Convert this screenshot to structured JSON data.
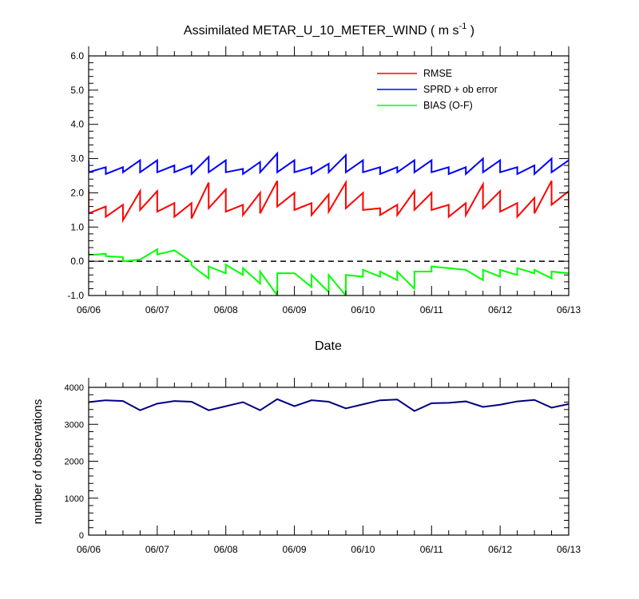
{
  "chart_data": [
    {
      "type": "line",
      "title": "Assimilated METAR_U_10_METER_WIND ( m s",
      "title_superscript": "-1",
      "title_suffix": " )",
      "xlabel": "Date",
      "ylabel": "",
      "ylim": [
        -1.0,
        6.0
      ],
      "xlim": [
        "06/06 00Z",
        "06/13 00Z"
      ],
      "x_ticks": [
        "06/06",
        "06/07",
        "06/08",
        "06/09",
        "06/10",
        "06/11",
        "06/12",
        "06/13"
      ],
      "y_ticks": [
        "-1.0",
        "0.0",
        "1.0",
        "2.0",
        "3.0",
        "4.0",
        "5.0",
        "6.0"
      ],
      "reference_line": {
        "y": 0.0,
        "style": "dashed",
        "color": "#000000"
      },
      "legend": {
        "placement": "top-right"
      },
      "series": [
        {
          "name": "RMSE",
          "color": "#ff0000",
          "points": [
            [
              "06/06 00Z",
              2.1
            ],
            [
              "06/06 00Z",
              1.4
            ],
            [
              "06/06 06Z",
              1.6
            ],
            [
              "06/06 06Z",
              1.3
            ],
            [
              "06/06 12Z",
              1.65
            ],
            [
              "06/06 12Z",
              1.2
            ],
            [
              "06/06 18Z",
              2.05
            ],
            [
              "06/06 18Z",
              1.5
            ],
            [
              "06/07 00Z",
              2.05
            ],
            [
              "06/07 00Z",
              1.45
            ],
            [
              "06/07 06Z",
              1.7
            ],
            [
              "06/07 06Z",
              1.3
            ],
            [
              "06/07 12Z",
              1.7
            ],
            [
              "06/07 12Z",
              1.25
            ],
            [
              "06/07 18Z",
              2.3
            ],
            [
              "06/07 18Z",
              1.55
            ],
            [
              "06/08 00Z",
              2.1
            ],
            [
              "06/08 00Z",
              1.45
            ],
            [
              "06/08 06Z",
              1.65
            ],
            [
              "06/08 06Z",
              1.35
            ],
            [
              "06/08 12Z",
              2.0
            ],
            [
              "06/08 12Z",
              1.4
            ],
            [
              "06/08 18Z",
              2.35
            ],
            [
              "06/08 18Z",
              1.6
            ],
            [
              "06/09 00Z",
              2.0
            ],
            [
              "06/09 00Z",
              1.5
            ],
            [
              "06/09 06Z",
              1.7
            ],
            [
              "06/09 06Z",
              1.35
            ],
            [
              "06/09 12Z",
              1.95
            ],
            [
              "06/09 12Z",
              1.45
            ],
            [
              "06/09 18Z",
              2.3
            ],
            [
              "06/09 18Z",
              1.55
            ],
            [
              "06/10 00Z",
              2.0
            ],
            [
              "06/10 00Z",
              1.5
            ],
            [
              "06/10 06Z",
              1.55
            ],
            [
              "06/10 06Z",
              1.35
            ],
            [
              "06/10 12Z",
              1.65
            ],
            [
              "06/10 12Z",
              1.35
            ],
            [
              "06/10 18Z",
              2.05
            ],
            [
              "06/10 18Z",
              1.5
            ],
            [
              "06/11 00Z",
              2.0
            ],
            [
              "06/11 00Z",
              1.5
            ],
            [
              "06/11 06Z",
              1.65
            ],
            [
              "06/11 06Z",
              1.3
            ],
            [
              "06/11 12Z",
              1.7
            ],
            [
              "06/11 12Z",
              1.35
            ],
            [
              "06/11 18Z",
              2.25
            ],
            [
              "06/11 18Z",
              1.55
            ],
            [
              "06/12 00Z",
              2.05
            ],
            [
              "06/12 00Z",
              1.45
            ],
            [
              "06/12 06Z",
              1.7
            ],
            [
              "06/12 06Z",
              1.3
            ],
            [
              "06/12 12Z",
              1.85
            ],
            [
              "06/12 12Z",
              1.4
            ],
            [
              "06/12 18Z",
              2.35
            ],
            [
              "06/12 18Z",
              1.65
            ],
            [
              "06/13 00Z",
              2.05
            ],
            [
              "06/13 00Z",
              1.55
            ]
          ]
        },
        {
          "name": "SPRD + ob error",
          "color": "#0000ff",
          "points": [
            [
              "06/06 00Z",
              2.95
            ],
            [
              "06/06 00Z",
              2.6
            ],
            [
              "06/06 06Z",
              2.75
            ],
            [
              "06/06 06Z",
              2.55
            ],
            [
              "06/06 12Z",
              2.75
            ],
            [
              "06/06 12Z",
              2.6
            ],
            [
              "06/06 18Z",
              2.95
            ],
            [
              "06/06 18Z",
              2.6
            ],
            [
              "06/07 00Z",
              2.95
            ],
            [
              "06/07 00Z",
              2.6
            ],
            [
              "06/07 06Z",
              2.8
            ],
            [
              "06/07 06Z",
              2.6
            ],
            [
              "06/07 12Z",
              2.8
            ],
            [
              "06/07 12Z",
              2.55
            ],
            [
              "06/07 18Z",
              3.05
            ],
            [
              "06/07 18Z",
              2.6
            ],
            [
              "06/08 00Z",
              2.95
            ],
            [
              "06/08 00Z",
              2.6
            ],
            [
              "06/08 06Z",
              2.7
            ],
            [
              "06/08 06Z",
              2.55
            ],
            [
              "06/08 12Z",
              2.9
            ],
            [
              "06/08 12Z",
              2.6
            ],
            [
              "06/08 18Z",
              3.15
            ],
            [
              "06/08 18Z",
              2.6
            ],
            [
              "06/09 00Z",
              2.95
            ],
            [
              "06/09 00Z",
              2.6
            ],
            [
              "06/09 06Z",
              2.75
            ],
            [
              "06/09 06Z",
              2.55
            ],
            [
              "06/09 12Z",
              2.85
            ],
            [
              "06/09 12Z",
              2.6
            ],
            [
              "06/09 18Z",
              3.1
            ],
            [
              "06/09 18Z",
              2.6
            ],
            [
              "06/10 00Z",
              2.95
            ],
            [
              "06/10 00Z",
              2.6
            ],
            [
              "06/10 06Z",
              2.75
            ],
            [
              "06/10 06Z",
              2.55
            ],
            [
              "06/10 12Z",
              2.75
            ],
            [
              "06/10 12Z",
              2.6
            ],
            [
              "06/10 18Z",
              2.95
            ],
            [
              "06/10 18Z",
              2.6
            ],
            [
              "06/11 00Z",
              2.95
            ],
            [
              "06/11 00Z",
              2.6
            ],
            [
              "06/11 06Z",
              2.75
            ],
            [
              "06/11 06Z",
              2.55
            ],
            [
              "06/11 12Z",
              2.75
            ],
            [
              "06/11 12Z",
              2.55
            ],
            [
              "06/11 18Z",
              3.0
            ],
            [
              "06/11 18Z",
              2.6
            ],
            [
              "06/12 00Z",
              2.95
            ],
            [
              "06/12 00Z",
              2.6
            ],
            [
              "06/12 06Z",
              2.75
            ],
            [
              "06/12 06Z",
              2.55
            ],
            [
              "06/12 12Z",
              2.8
            ],
            [
              "06/12 12Z",
              2.55
            ],
            [
              "06/12 18Z",
              3.0
            ],
            [
              "06/12 18Z",
              2.6
            ],
            [
              "06/13 00Z",
              2.95
            ]
          ]
        },
        {
          "name": "BIAS (O-F)",
          "color": "#00ff00",
          "points": [
            [
              "06/06 00Z",
              0.3
            ],
            [
              "06/06 00Z",
              0.18
            ],
            [
              "06/06 06Z",
              0.22
            ],
            [
              "06/06 06Z",
              0.15
            ],
            [
              "06/06 12Z",
              0.12
            ],
            [
              "06/06 12Z",
              0.0
            ],
            [
              "06/06 18Z",
              0.05
            ],
            [
              "06/06 18Z",
              0.05
            ],
            [
              "06/07 00Z",
              0.35
            ],
            [
              "06/07 00Z",
              0.2
            ],
            [
              "06/07 06Z",
              0.32
            ],
            [
              "06/07 06Z",
              0.32
            ],
            [
              "06/07 12Z",
              -0.02
            ],
            [
              "06/07 12Z",
              -0.12
            ],
            [
              "06/07 18Z",
              -0.5
            ],
            [
              "06/07 18Z",
              -0.15
            ],
            [
              "06/08 00Z",
              -0.35
            ],
            [
              "06/08 00Z",
              -0.1
            ],
            [
              "06/08 06Z",
              -0.4
            ],
            [
              "06/08 06Z",
              -0.2
            ],
            [
              "06/08 12Z",
              -0.65
            ],
            [
              "06/08 12Z",
              -0.3
            ],
            [
              "06/08 18Z",
              -1.0
            ],
            [
              "06/08 18Z",
              -0.35
            ],
            [
              "06/09 00Z",
              -0.35
            ],
            [
              "06/09 00Z",
              -0.35
            ],
            [
              "06/09 06Z",
              -0.75
            ],
            [
              "06/09 06Z",
              -0.4
            ],
            [
              "06/09 12Z",
              -0.9
            ],
            [
              "06/09 12Z",
              -0.4
            ],
            [
              "06/09 18Z",
              -1.0
            ],
            [
              "06/09 18Z",
              -0.4
            ],
            [
              "06/10 00Z",
              -0.45
            ],
            [
              "06/10 00Z",
              -0.25
            ],
            [
              "06/10 06Z",
              -0.45
            ],
            [
              "06/10 06Z",
              -0.3
            ],
            [
              "06/10 12Z",
              -0.55
            ],
            [
              "06/10 12Z",
              -0.3
            ],
            [
              "06/10 18Z",
              -0.8
            ],
            [
              "06/10 18Z",
              -0.3
            ],
            [
              "06/11 00Z",
              -0.3
            ],
            [
              "06/11 00Z",
              -0.15
            ],
            [
              "06/11 06Z",
              -0.2
            ],
            [
              "06/11 06Z",
              -0.2
            ],
            [
              "06/11 12Z",
              -0.25
            ],
            [
              "06/11 12Z",
              -0.25
            ],
            [
              "06/11 18Z",
              -0.55
            ],
            [
              "06/11 18Z",
              -0.25
            ],
            [
              "06/12 00Z",
              -0.45
            ],
            [
              "06/12 00Z",
              -0.25
            ],
            [
              "06/12 06Z",
              -0.4
            ],
            [
              "06/12 06Z",
              -0.2
            ],
            [
              "06/12 12Z",
              -0.35
            ],
            [
              "06/12 12Z",
              -0.25
            ],
            [
              "06/12 18Z",
              -0.5
            ],
            [
              "06/12 18Z",
              -0.3
            ],
            [
              "06/13 00Z",
              -0.35
            ]
          ]
        }
      ]
    },
    {
      "type": "line",
      "title": "",
      "xlabel": "",
      "ylabel": "number of observations",
      "ylim": [
        0,
        4000
      ],
      "xlim": [
        "06/06 00Z",
        "06/13 00Z"
      ],
      "x_ticks": [
        "06/06",
        "06/07",
        "06/08",
        "06/09",
        "06/10",
        "06/11",
        "06/12",
        "06/13"
      ],
      "y_ticks": [
        "0",
        "1000",
        "2000",
        "3000",
        "4000"
      ],
      "series": [
        {
          "color": "#000080",
          "points": [
            [
              "06/06 00Z",
              3600
            ],
            [
              "06/06 06Z",
              3650
            ],
            [
              "06/06 12Z",
              3630
            ],
            [
              "06/06 18Z",
              3380
            ],
            [
              "06/07 00Z",
              3560
            ],
            [
              "06/07 06Z",
              3630
            ],
            [
              "06/07 12Z",
              3610
            ],
            [
              "06/07 18Z",
              3380
            ],
            [
              "06/08 00Z",
              3490
            ],
            [
              "06/08 06Z",
              3600
            ],
            [
              "06/08 12Z",
              3380
            ],
            [
              "06/08 18Z",
              3680
            ],
            [
              "06/09 00Z",
              3490
            ],
            [
              "06/09 06Z",
              3650
            ],
            [
              "06/09 12Z",
              3610
            ],
            [
              "06/09 18Z",
              3430
            ],
            [
              "06/10 00Z",
              3540
            ],
            [
              "06/10 06Z",
              3650
            ],
            [
              "06/10 12Z",
              3670
            ],
            [
              "06/10 18Z",
              3360
            ],
            [
              "06/11 00Z",
              3570
            ],
            [
              "06/11 06Z",
              3580
            ],
            [
              "06/11 12Z",
              3620
            ],
            [
              "06/11 18Z",
              3470
            ],
            [
              "06/12 00Z",
              3530
            ],
            [
              "06/12 06Z",
              3620
            ],
            [
              "06/12 12Z",
              3660
            ],
            [
              "06/12 18Z",
              3450
            ],
            [
              "06/13 00Z",
              3550
            ]
          ]
        }
      ]
    }
  ]
}
